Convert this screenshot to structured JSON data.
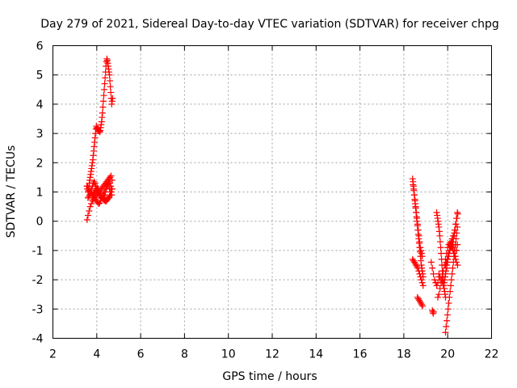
{
  "chart_data": {
    "type": "scatter",
    "title": "Day 279 of 2021, Sidereal Day-to-day VTEC variation (SDTVAR) for receiver chpg",
    "xlabel": "GPS time / hours",
    "ylabel": "SDTVAR / TECUs",
    "xlim": [
      2,
      22
    ],
    "ylim": [
      -4,
      6
    ],
    "xticks": [
      2,
      4,
      6,
      8,
      10,
      12,
      14,
      16,
      18,
      20,
      22
    ],
    "yticks": [
      -4,
      -3,
      -2,
      -1,
      0,
      1,
      2,
      3,
      4,
      5,
      6
    ],
    "grid": true,
    "marker": "+",
    "color": "#ff0000",
    "series": [
      {
        "name": "chpg",
        "x": [
          3.55,
          3.57,
          3.6,
          3.62,
          3.64,
          3.66,
          3.68,
          3.7,
          3.72,
          3.74,
          3.76,
          3.78,
          3.8,
          3.82,
          3.84,
          3.86,
          3.88,
          3.9,
          3.92,
          3.94,
          3.96,
          3.98,
          4.0,
          4.02,
          4.04,
          4.06,
          4.08,
          4.1,
          4.12,
          4.14,
          4.16,
          4.18,
          4.2,
          4.22,
          4.24,
          4.26,
          4.28,
          4.3,
          4.32,
          4.34,
          4.36,
          4.38,
          4.4,
          4.42,
          4.44,
          4.46,
          4.48,
          4.5,
          4.52,
          4.54,
          4.56,
          4.58,
          4.6,
          4.62,
          4.64,
          4.66,
          4.68,
          4.7,
          4.72,
          3.56,
          3.6,
          3.65,
          3.7,
          3.75,
          3.8,
          3.85,
          3.9,
          3.95,
          4.0,
          4.05,
          4.1,
          4.15,
          4.2,
          4.25,
          4.3,
          4.35,
          4.4,
          4.45,
          4.5,
          4.55,
          4.6,
          4.65,
          4.7,
          3.58,
          3.63,
          3.68,
          3.73,
          3.78,
          3.83,
          3.88,
          3.93,
          3.98,
          4.03,
          4.08,
          4.13,
          4.18,
          4.23,
          4.28,
          4.33,
          4.38,
          4.43,
          4.48,
          4.53,
          4.58,
          4.63,
          4.68,
          3.82,
          3.86,
          3.9,
          3.94,
          3.98,
          4.02,
          4.06,
          4.1,
          4.14,
          4.18,
          4.22,
          4.26,
          4.3,
          4.34,
          4.38,
          4.42,
          4.46,
          4.5,
          4.54,
          4.58,
          4.62,
          4.66,
          4.7,
          3.6,
          3.64,
          3.68,
          3.72,
          3.76,
          3.8,
          3.84,
          3.88,
          3.92,
          3.96,
          4.0,
          4.04,
          4.08,
          4.12,
          4.16,
          4.2,
          4.24,
          4.28,
          4.32,
          4.36,
          4.4,
          4.44,
          4.48,
          4.52,
          4.56,
          4.6,
          4.64,
          4.68,
          18.4,
          18.42,
          18.44,
          18.46,
          18.48,
          18.5,
          18.52,
          18.54,
          18.56,
          18.58,
          18.6,
          18.62,
          18.64,
          18.66,
          18.68,
          18.7,
          18.72,
          18.74,
          18.76,
          18.78,
          18.8,
          18.82,
          18.84,
          18.86,
          18.88,
          18.42,
          18.45,
          18.48,
          18.51,
          18.54,
          18.57,
          18.6,
          18.63,
          18.66,
          18.69,
          18.72,
          18.75,
          18.78,
          18.81,
          18.84,
          18.4,
          18.44,
          18.48,
          18.52,
          18.56,
          18.6,
          18.64,
          18.68,
          18.72,
          18.76,
          18.8,
          18.84,
          18.88,
          18.62,
          18.66,
          18.7,
          18.74,
          18.78,
          18.82,
          18.86,
          19.3,
          19.32,
          19.34,
          19.36,
          19.25,
          19.3,
          19.35,
          19.4,
          19.45,
          19.5,
          19.55,
          19.6,
          19.5,
          19.52,
          19.54,
          19.56,
          19.58,
          19.6,
          19.62,
          19.64,
          19.66,
          19.68,
          19.7,
          19.72,
          19.74,
          19.76,
          19.78,
          19.8,
          19.82,
          19.84,
          19.86,
          19.88,
          19.9,
          19.55,
          19.6,
          19.65,
          19.7,
          19.75,
          19.8,
          19.85,
          19.9,
          19.95,
          20.0,
          20.05,
          20.1,
          20.15,
          20.2,
          20.25,
          20.3,
          20.35,
          20.4,
          19.6,
          19.65,
          19.7,
          19.75,
          19.8,
          19.85,
          19.9,
          19.95,
          20.0,
          20.05,
          20.1,
          20.15,
          20.2,
          20.25,
          20.3,
          20.35,
          20.4,
          20.45,
          19.8,
          19.84,
          19.88,
          19.92,
          19.96,
          20.0,
          20.04,
          20.08,
          20.12,
          20.16,
          20.2,
          20.24,
          20.28,
          20.32,
          20.36,
          20.4,
          20.44,
          19.9,
          19.93,
          19.96,
          19.99,
          20.02,
          20.05,
          20.08,
          20.11,
          20.14,
          20.17,
          20.2,
          20.23,
          20.26,
          20.29,
          20.32,
          20.35,
          20.38,
          20.41,
          20.44,
          19.9,
          19.94,
          19.98,
          20.02,
          20.06,
          20.1,
          20.14,
          20.18,
          20.22,
          20.26,
          20.3,
          20.34,
          20.38,
          20.42,
          20.46,
          20.2,
          20.24,
          20.28,
          20.32,
          20.36,
          20.4,
          20.44
        ],
        "y": [
          1.2,
          1.1,
          1.0,
          1.05,
          1.15,
          1.3,
          1.4,
          1.5,
          1.6,
          1.7,
          1.8,
          1.9,
          2.0,
          2.1,
          2.25,
          2.4,
          2.55,
          2.7,
          2.85,
          3.0,
          3.15,
          3.25,
          3.2,
          3.18,
          3.15,
          3.12,
          3.1,
          3.1,
          3.08,
          3.05,
          3.1,
          3.2,
          3.3,
          3.4,
          3.55,
          3.7,
          3.9,
          4.1,
          4.3,
          4.5,
          4.7,
          4.9,
          5.1,
          5.3,
          5.45,
          5.55,
          5.5,
          5.4,
          5.3,
          5.2,
          5.1,
          5.0,
          4.8,
          4.6,
          4.4,
          4.2,
          4.0,
          4.1,
          4.2,
          0.05,
          0.2,
          0.35,
          0.5,
          0.6,
          0.7,
          0.75,
          0.8,
          0.85,
          0.9,
          0.95,
          1.0,
          1.05,
          1.1,
          1.15,
          1.2,
          1.25,
          1.3,
          1.35,
          1.4,
          1.45,
          1.5,
          1.55,
          1.4,
          1.2,
          1.1,
          1.0,
          0.95,
          0.9,
          0.85,
          0.8,
          0.75,
          0.7,
          0.65,
          0.6,
          0.62,
          0.7,
          0.8,
          0.9,
          1.0,
          1.1,
          1.2,
          1.25,
          1.2,
          1.1,
          1.0,
          0.9,
          0.9,
          0.95,
          1.0,
          1.05,
          1.1,
          1.15,
          1.1,
          1.0,
          0.95,
          0.9,
          0.85,
          0.8,
          0.75,
          0.72,
          0.7,
          0.68,
          0.72,
          0.76,
          0.8,
          0.85,
          0.9,
          1.0,
          1.1,
          0.8,
          0.85,
          0.9,
          1.0,
          1.1,
          1.2,
          1.3,
          1.35,
          1.3,
          1.2,
          1.1,
          1.0,
          0.95,
          0.9,
          0.85,
          0.8,
          0.78,
          0.8,
          0.85,
          0.9,
          1.0,
          1.1,
          1.2,
          1.3,
          1.35,
          1.3,
          1.2,
          1.1,
          1.45,
          1.35,
          1.2,
          1.05,
          0.9,
          0.75,
          0.6,
          0.45,
          0.3,
          0.15,
          0.0,
          -0.15,
          -0.3,
          -0.45,
          -0.6,
          -0.75,
          -0.9,
          -1.05,
          -1.2,
          -1.35,
          -1.5,
          -1.6,
          -1.7,
          -1.8,
          -1.9,
          1.25,
          1.1,
          0.9,
          0.7,
          0.5,
          0.3,
          0.1,
          -0.1,
          -0.3,
          -0.5,
          -0.7,
          -0.9,
          -1.0,
          -1.1,
          -1.2,
          -1.3,
          -1.35,
          -1.4,
          -1.45,
          -1.5,
          -1.55,
          -1.6,
          -1.7,
          -1.8,
          -1.9,
          -2.0,
          -2.1,
          -2.2,
          -2.6,
          -2.65,
          -2.7,
          -2.75,
          -2.8,
          -2.85,
          -2.9,
          -3.05,
          -3.1,
          -3.15,
          -3.1,
          -1.4,
          -1.6,
          -1.8,
          -2.0,
          -2.1,
          -2.2,
          -2.1,
          -1.9,
          0.3,
          0.2,
          0.1,
          0.0,
          -0.1,
          -0.2,
          -0.35,
          -0.5,
          -0.7,
          -0.9,
          -1.1,
          -1.3,
          -1.5,
          -1.7,
          -1.9,
          -2.1,
          -2.2,
          -2.3,
          -2.4,
          -2.5,
          -2.6,
          -2.6,
          -2.5,
          -2.3,
          -2.1,
          -1.9,
          -1.7,
          -1.5,
          -1.3,
          -1.1,
          -0.9,
          -0.8,
          -0.75,
          -0.7,
          -0.6,
          -0.5,
          -0.4,
          -0.8,
          -1.0,
          -1.8,
          -1.9,
          -2.0,
          -2.05,
          -2.1,
          -2.0,
          -1.8,
          -1.6,
          -1.4,
          -1.2,
          -1.0,
          -0.8,
          -0.7,
          -0.8,
          -1.0,
          -1.2,
          -1.4,
          -1.5,
          -2.2,
          -2.1,
          -1.9,
          -1.7,
          -1.5,
          -1.3,
          -1.1,
          -0.9,
          -0.8,
          -0.85,
          -0.9,
          -1.0,
          -1.1,
          -1.2,
          -1.3,
          -1.0,
          -0.8,
          -3.8,
          -3.6,
          -3.4,
          -3.2,
          -3.0,
          -2.8,
          -2.6,
          -2.4,
          -2.2,
          -2.0,
          -1.8,
          -1.6,
          -1.4,
          -1.2,
          -1.0,
          -0.8,
          -0.6,
          -0.4,
          -0.2,
          -1.5,
          -1.4,
          -1.3,
          -1.2,
          -1.1,
          -1.0,
          -0.9,
          -0.8,
          -0.7,
          -0.6,
          -0.5,
          -0.3,
          -0.1,
          0.1,
          0.25,
          -0.9,
          -0.7,
          -0.5,
          -0.3,
          -0.1,
          0.1,
          0.3
        ]
      }
    ]
  }
}
